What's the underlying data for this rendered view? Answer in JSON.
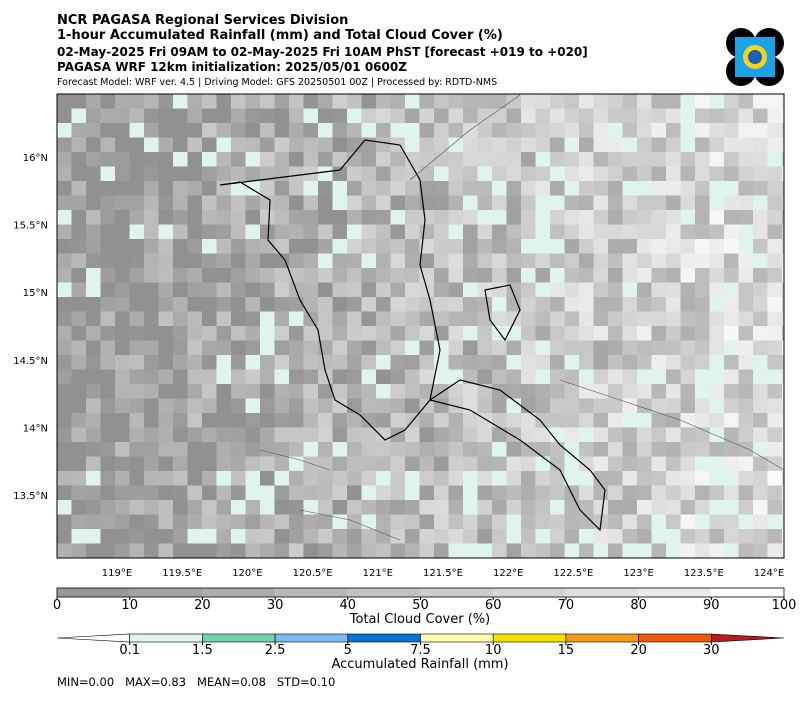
{
  "header": {
    "title": "NCR PAGASA Regional Services Division",
    "subtitle": "1-hour Accumulated Rainfall (mm) and Total Cloud Cover (%)",
    "valid_time": "02-May-2025 Fri 09AM to 02-May-2025 Fri 10AM PhST [forecast +019 to +020]",
    "initialization": "PAGASA WRF 12km initialization: 2025/05/01 0600Z",
    "model_info": "Forecast Model: WRF ver. 4.5 | Driving Model: GFS 20250501 00Z | Processed by: RDTD-NMS"
  },
  "map": {
    "lat_labels": [
      "16°N",
      "15.5°N",
      "15°N",
      "14.5°N",
      "14°N",
      "13.5°N"
    ],
    "lon_labels": [
      "119°E",
      "119.5°E",
      "120°E",
      "120.5°E",
      "121°E",
      "121.5°E",
      "122°E",
      "122.5°E",
      "123°E",
      "123.5°E",
      "124°E"
    ]
  },
  "cloud_colorbar": {
    "label": "Total Cloud Cover (%)",
    "ticks": [
      0,
      10,
      20,
      30,
      40,
      50,
      60,
      70,
      80,
      90,
      100
    ],
    "colors": [
      "#999999",
      "#a3a3a3",
      "#adadad",
      "#b8b8b8",
      "#c2c2c2",
      "#cccccc",
      "#d6d6d6",
      "#e0e0e0",
      "#ebebeb",
      "#ffffff"
    ]
  },
  "rain_colorbar": {
    "label": "Accumulated Rainfall (mm)",
    "ticks": [
      "0.1",
      "1.5",
      "2.5",
      "5",
      "7.5",
      "10",
      "15",
      "20",
      "30"
    ],
    "colors": [
      "#ffffff",
      "#e0f5ef",
      "#6fd3ab",
      "#7cb9ef",
      "#0a73d8",
      "#fffdb0",
      "#f6e200",
      "#f39a1a",
      "#ec5a10",
      "#b71c1c"
    ]
  },
  "stats": "MIN=0.00   MAX=0.83   MEAN=0.08   STD=0.10"
}
